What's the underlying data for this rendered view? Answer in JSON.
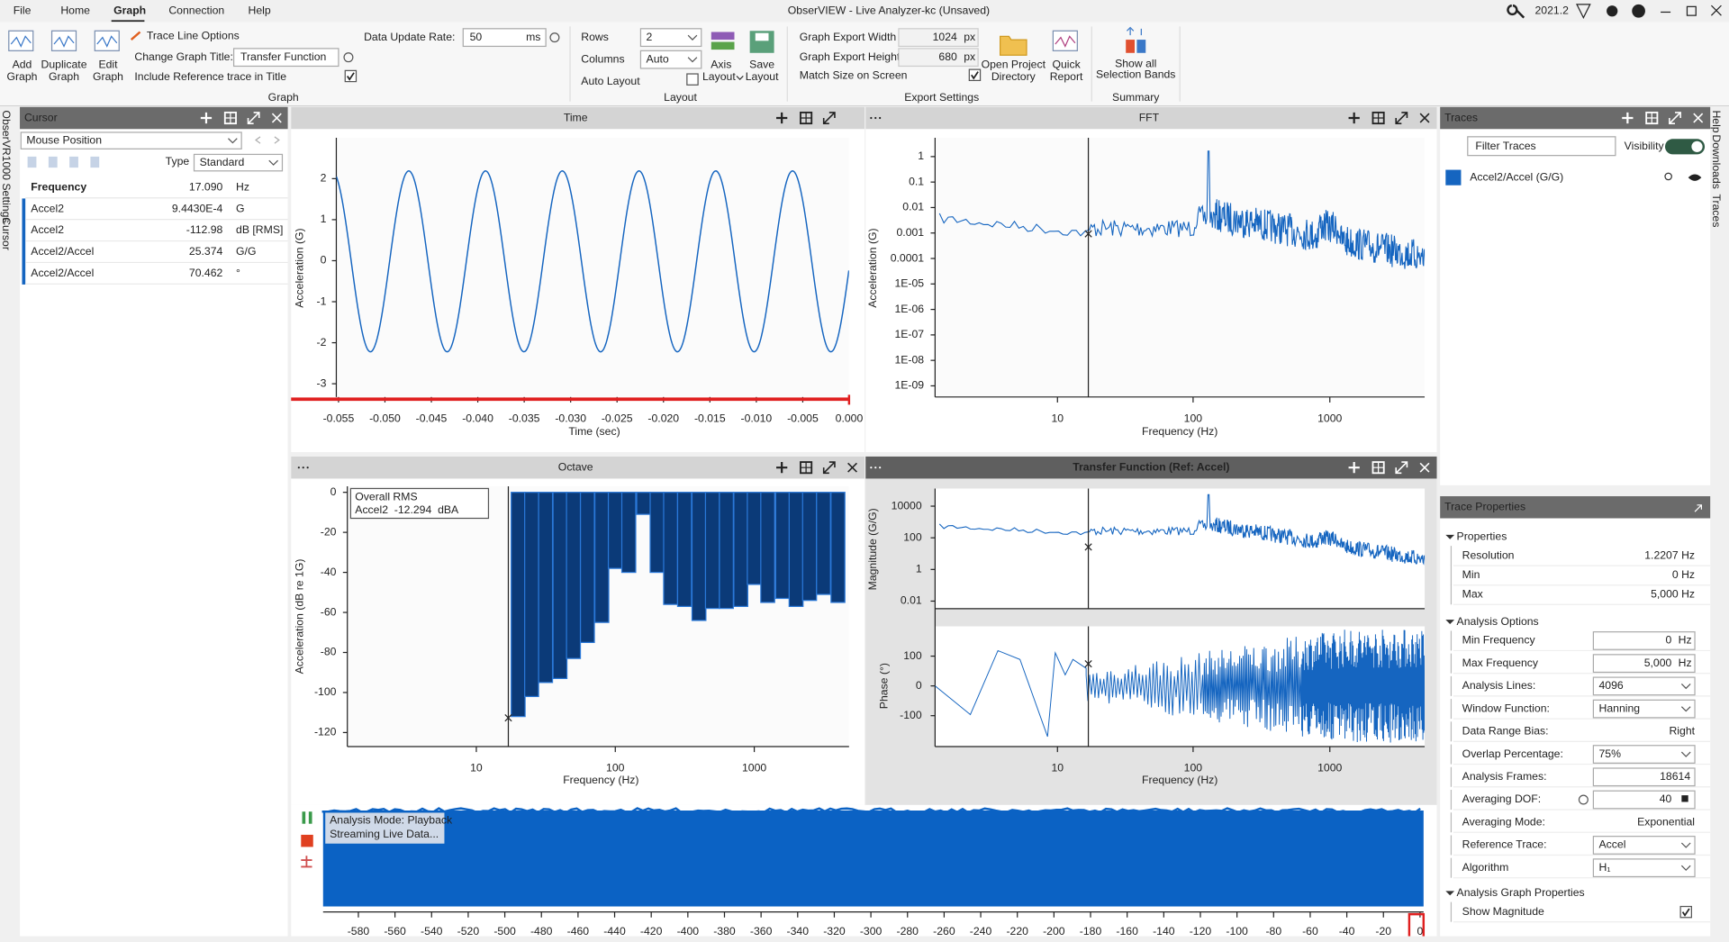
{
  "menu": [
    "File",
    "Home",
    "Graph",
    "Connection",
    "Help"
  ],
  "window_title": "ObserVIEW - Live Analyzer-kc (Unsaved)",
  "version": "2021.2",
  "ribbon": {
    "graph_buttons": [
      [
        "Add",
        "Graph"
      ],
      [
        "Duplicate",
        "Graph"
      ],
      [
        "Edit",
        "Graph"
      ]
    ],
    "trace_line_options": "Trace Line Options",
    "change_title_label": "Change Graph Title:",
    "change_title_value": "Transfer Function",
    "include_reference": "Include Reference trace in Title",
    "update_rate_label": "Data Update Rate:",
    "update_rate_value": "50",
    "update_rate_unit": "ms",
    "rows_label": "Rows",
    "rows_value": "2",
    "columns_label": "Columns",
    "columns_value": "Auto",
    "auto_layout": "Auto Layout",
    "layout_buttons": [
      [
        "Axis",
        "Layout"
      ],
      [
        "Save",
        "Layout"
      ]
    ],
    "export_width_label": "Graph Export Width",
    "export_width": "1024",
    "export_height_label": "Graph Export Height",
    "export_height": "680",
    "px": "px",
    "match_size": "Match Size on Screen",
    "export_buttons": [
      [
        "Open Project",
        "Directory"
      ],
      [
        "Quick",
        "Report"
      ]
    ],
    "summary_button": [
      "Show all",
      "Selection Bands"
    ],
    "groups": [
      "Graph",
      "Layout",
      "Export Settings",
      "Summary"
    ]
  },
  "side_tabs_left": [
    "ObserVR1000 Settings",
    "Cursor"
  ],
  "side_tabs_right": [
    "Help",
    "Downloads",
    "Traces"
  ],
  "cursor": {
    "title": "Cursor",
    "mode": "Mouse Position",
    "type_label": "Type",
    "type_value": "Standard",
    "rows": [
      [
        "Frequency",
        "17.090",
        "Hz"
      ],
      [
        "Accel2",
        "9.4430E-4",
        "G"
      ],
      [
        "Accel2",
        "-112.98",
        "dB [RMS]"
      ],
      [
        "Accel2/Accel",
        "25.374",
        "G/G"
      ],
      [
        "Accel2/Accel",
        "70.462",
        "°"
      ]
    ]
  },
  "graphs": {
    "time": {
      "title": "Time",
      "ylabel": "Acceleration (G)",
      "xlabel": "Time (sec)",
      "yticks": [
        "2",
        "1",
        "0",
        "-1",
        "-2",
        "-3"
      ],
      "xticks": [
        "-0.055",
        "-0.050",
        "-0.045",
        "-0.040",
        "-0.035",
        "-0.030",
        "-0.025",
        "-0.020",
        "-0.015",
        "-0.010",
        "-0.005",
        "0.000"
      ]
    },
    "fft": {
      "title": "FFT",
      "ylabel": "Acceleration (G)",
      "xlabel": "Frequency (Hz)",
      "yticks": [
        "1",
        "0.1",
        "0.01",
        "0.001",
        "0.0001",
        "1E-05",
        "1E-06",
        "1E-07",
        "1E-08",
        "1E-09"
      ],
      "xticks": [
        "10",
        "100",
        "1000"
      ]
    },
    "octave": {
      "title": "Octave",
      "overlay": [
        "Overall RMS",
        "Accel2  -12.294  dBA"
      ],
      "chart": {
        "type": "bar",
        "ylabel": "Acceleration (dB re 1G)",
        "xlabel": "Frequency (Hz)",
        "x": [
          20,
          25,
          31.5,
          40,
          50,
          63,
          80,
          100,
          125,
          160,
          200,
          250,
          315,
          400,
          500,
          630,
          800,
          1000,
          1250,
          1600,
          2000,
          2500,
          3150,
          4000
        ],
        "values": [
          -112,
          -102,
          -95,
          -93,
          -83,
          -75,
          -65,
          -38,
          -40,
          -11,
          -40,
          -56,
          -57,
          -64,
          -58,
          -58,
          -57,
          -46,
          -55,
          -53,
          -57,
          -54,
          -51,
          -55
        ],
        "color": "#0b3a78",
        "xlim": [
          1.18,
          4810
        ],
        "xscale": "log",
        "xticks": [
          10,
          100,
          1000
        ],
        "ylim": [
          -127,
          3
        ],
        "yticks": [
          0,
          -20,
          -40,
          -60,
          -80,
          -100,
          -120
        ]
      }
    },
    "tf": {
      "title": "Transfer Function (Ref: Accel)",
      "ylabel_mag": "Magnitude (G/G)",
      "ylabel_phase": "Phase (°)",
      "mag_yticks": [
        "10000",
        "100",
        "1",
        "0.01"
      ],
      "phase_yticks": [
        "100",
        "0",
        "-100"
      ],
      "xticks": [
        "10",
        "100",
        "1000"
      ],
      "xlabel": "Frequency (Hz)"
    }
  },
  "stream": {
    "status": [
      "Analysis Mode: Playback",
      "Streaming Live Data..."
    ],
    "xticks": [
      "-580",
      "-560",
      "-540",
      "-520",
      "-500",
      "-480",
      "-460",
      "-440",
      "-420",
      "-400",
      "-380",
      "-360",
      "-340",
      "-320",
      "-300",
      "-280",
      "-260",
      "-240",
      "-220",
      "-200",
      "-180",
      "-160",
      "-140",
      "-120",
      "-100",
      "-80",
      "-60",
      "-40",
      "-20",
      "0"
    ]
  },
  "traces": {
    "title": "Traces",
    "filter": "Filter Traces",
    "visibility": "Visibility",
    "items": [
      "Accel2/Accel (G/G)"
    ]
  },
  "trace_properties": {
    "title": "Trace Properties",
    "sections": [
      {
        "name": "Properties",
        "rows": [
          [
            "Resolution",
            "1.2207 Hz"
          ],
          [
            "Min",
            "0 Hz"
          ],
          [
            "Max",
            "5,000 Hz"
          ]
        ]
      },
      {
        "name": "Analysis Options",
        "rows": [
          [
            "Min Frequency",
            "0",
            "Hz"
          ],
          [
            "Max Frequency",
            "5,000",
            "Hz"
          ],
          [
            "Analysis Lines:",
            "4096"
          ],
          [
            "Window Function:",
            "Hanning"
          ],
          [
            "Data Range Bias:",
            "Right"
          ],
          [
            "Overlap Percentage:",
            "75%"
          ],
          [
            "Analysis Frames:",
            "18614"
          ],
          [
            "Averaging DOF:",
            "40"
          ],
          [
            "Averaging Mode:",
            "Exponential"
          ],
          [
            "Reference Trace:",
            "Accel"
          ],
          [
            "Algorithm",
            "H₁"
          ]
        ]
      },
      {
        "name": "Analysis Graph Properties",
        "rows": [
          [
            "Show Magnitude"
          ]
        ]
      }
    ]
  }
}
